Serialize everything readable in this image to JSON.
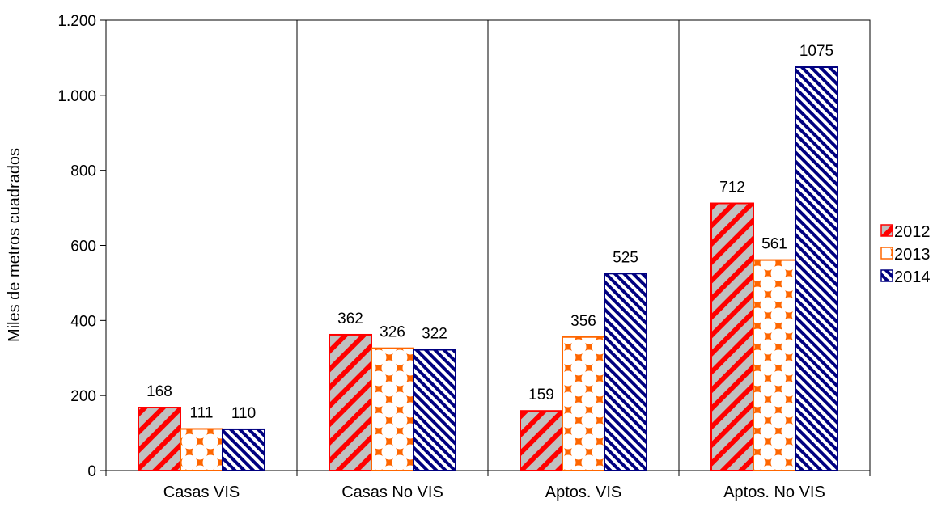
{
  "chart_data": {
    "type": "bar",
    "title": "",
    "xlabel": "",
    "ylabel": "Miles de metros cuadrados",
    "ylim": [
      0,
      1200
    ],
    "yticks": [
      0,
      200,
      400,
      600,
      800,
      1000,
      1200
    ],
    "ytick_labels": [
      "0",
      "200",
      "400",
      "600",
      "800",
      "1.000",
      "1.200"
    ],
    "categories": [
      "Casas VIS",
      "Casas No VIS",
      "Aptos. VIS",
      "Aptos. No VIS"
    ],
    "series": [
      {
        "name": "2012",
        "values": [
          168,
          362,
          159,
          712
        ],
        "color": "#ff0000",
        "pattern": "diagonal-red-gray"
      },
      {
        "name": "2013",
        "values": [
          111,
          326,
          356,
          561
        ],
        "color": "#ff6600",
        "pattern": "diamond-orange"
      },
      {
        "name": "2014",
        "values": [
          110,
          322,
          525,
          1075
        ],
        "color": "#000080",
        "pattern": "diagonal-navy"
      }
    ],
    "grid": false,
    "legend_position": "right"
  }
}
